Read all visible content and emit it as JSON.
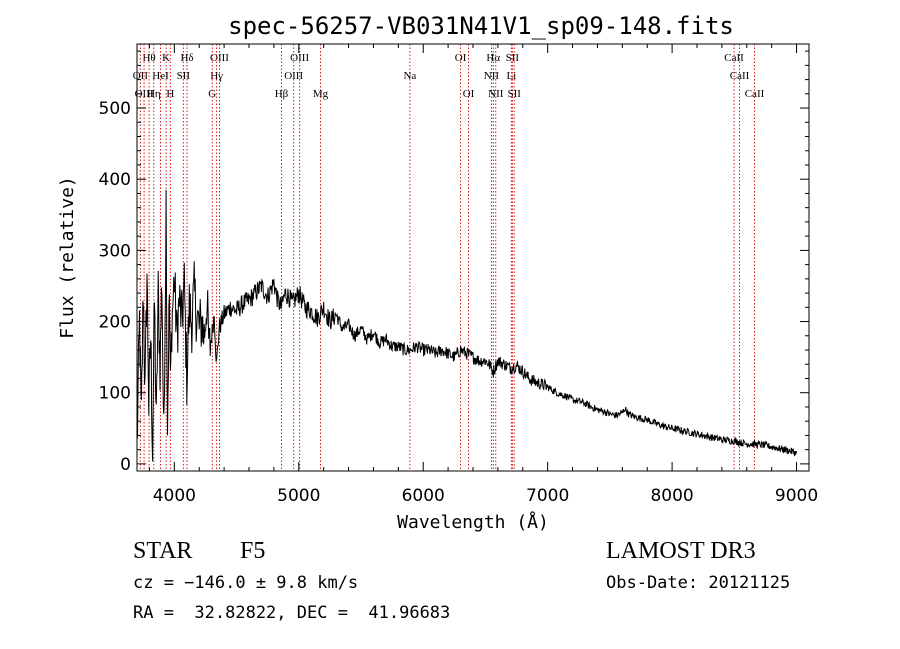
{
  "chart_data": {
    "type": "line",
    "title": "spec-56257-VB031N41V1_sp09-148.fits",
    "xlabel": "Wavelength (Å)",
    "ylabel": "Flux (relative)",
    "xlim": [
      3700,
      9100
    ],
    "ylim": [
      -10,
      590
    ],
    "xticks": [
      4000,
      5000,
      6000,
      7000,
      8000,
      9000
    ],
    "yticks": [
      0,
      100,
      200,
      300,
      400,
      500
    ],
    "xtick_labels": [
      "4000",
      "5000",
      "6000",
      "7000",
      "8000",
      "9000"
    ],
    "ytick_labels": [
      "0",
      "100",
      "200",
      "300",
      "400",
      "500"
    ],
    "spectrum": {
      "x": [
        3700,
        3720,
        3735,
        3750,
        3765,
        3780,
        3795,
        3810,
        3825,
        3840,
        3855,
        3870,
        3885,
        3900,
        3915,
        3925,
        3934,
        3945,
        3960,
        3968,
        3980,
        4000,
        4020,
        4040,
        4060,
        4080,
        4100,
        4120,
        4140,
        4160,
        4180,
        4200,
        4220,
        4240,
        4260,
        4280,
        4300,
        4320,
        4340,
        4360,
        4380,
        4400,
        4450,
        4500,
        4550,
        4600,
        4650,
        4700,
        4750,
        4800,
        4830,
        4861,
        4890,
        4920,
        4950,
        5000,
        5050,
        5100,
        5150,
        5200,
        5250,
        5300,
        5350,
        5400,
        5450,
        5500,
        5550,
        5600,
        5650,
        5700,
        5750,
        5800,
        5850,
        5893,
        5950,
        6000,
        6050,
        6100,
        6150,
        6200,
        6250,
        6300,
        6350,
        6400,
        6450,
        6500,
        6530,
        6563,
        6600,
        6650,
        6700,
        6750,
        6800,
        6850,
        6900,
        6950,
        7000,
        7050,
        7100,
        7150,
        7200,
        7250,
        7300,
        7350,
        7400,
        7450,
        7500,
        7550,
        7600,
        7620,
        7650,
        7700,
        7750,
        7800,
        7850,
        7900,
        7950,
        8000,
        8050,
        8100,
        8150,
        8200,
        8250,
        8300,
        8350,
        8400,
        8450,
        8500,
        8550,
        8600,
        8650,
        8700,
        8750,
        8800,
        8850,
        8900,
        8950,
        9000
      ],
      "y": [
        20,
        200,
        60,
        250,
        100,
        270,
        80,
        180,
        20,
        230,
        50,
        240,
        140,
        260,
        30,
        210,
        370,
        60,
        240,
        100,
        200,
        260,
        180,
        230,
        200,
        250,
        120,
        220,
        200,
        240,
        210,
        190,
        200,
        180,
        230,
        160,
        180,
        210,
        140,
        190,
        200,
        210,
        220,
        215,
        225,
        230,
        240,
        250,
        235,
        255,
        230,
        220,
        240,
        235,
        225,
        240,
        220,
        215,
        205,
        220,
        200,
        210,
        190,
        195,
        180,
        190,
        175,
        185,
        170,
        175,
        165,
        165,
        160,
        160,
        165,
        160,
        160,
        155,
        160,
        155,
        150,
        160,
        155,
        150,
        145,
        145,
        140,
        130,
        145,
        140,
        135,
        138,
        130,
        120,
        115,
        112,
        108,
        102,
        98,
        95,
        90,
        88,
        85,
        80,
        76,
        74,
        70,
        68,
        72,
        78,
        70,
        66,
        64,
        62,
        58,
        55,
        52,
        50,
        48,
        46,
        44,
        42,
        40,
        38,
        36,
        34,
        33,
        32,
        30,
        28,
        28,
        27,
        26,
        24,
        22,
        20,
        18,
        15
      ]
    },
    "lines": [
      {
        "label": "Hθ",
        "wl": 3797,
        "row": 0
      },
      {
        "label": "K",
        "wl": 3934,
        "row": 0
      },
      {
        "label": "Hδ",
        "wl": 4102,
        "row": 0
      },
      {
        "label": "OIII",
        "wl": 4363,
        "row": 0
      },
      {
        "label": "OIII",
        "wl": 5007,
        "row": 0
      },
      {
        "label": "OI",
        "wl": 6300,
        "row": 0
      },
      {
        "label": "Hα",
        "wl": 6563,
        "row": 0
      },
      {
        "label": "SII",
        "wl": 6716,
        "row": 0
      },
      {
        "label": "CaII",
        "wl": 8498,
        "row": 0
      },
      {
        "label": "OII",
        "wl": 3727,
        "row": 1
      },
      {
        "label": "HeI",
        "wl": 3889,
        "row": 1
      },
      {
        "label": "SII",
        "wl": 4072,
        "row": 1
      },
      {
        "label": "Hγ",
        "wl": 4340,
        "row": 1
      },
      {
        "label": "OIII",
        "wl": 4959,
        "row": 1
      },
      {
        "label": "Na",
        "wl": 5893,
        "row": 1
      },
      {
        "label": "NII",
        "wl": 6548,
        "row": 1
      },
      {
        "label": "Li",
        "wl": 6708,
        "row": 1
      },
      {
        "label": "CaII",
        "wl": 8542,
        "row": 1
      },
      {
        "label": "OIII",
        "wl": 3757,
        "row": 2
      },
      {
        "label": "Hη",
        "wl": 3835,
        "row": 2
      },
      {
        "label": "H",
        "wl": 3968,
        "row": 2
      },
      {
        "label": "G",
        "wl": 4305,
        "row": 2
      },
      {
        "label": "Hβ",
        "wl": 4861,
        "row": 2
      },
      {
        "label": "Mg",
        "wl": 5175,
        "row": 2
      },
      {
        "label": "OI",
        "wl": 6364,
        "row": 2
      },
      {
        "label": "NII",
        "wl": 6583,
        "row": 2
      },
      {
        "label": "SII",
        "wl": 6731,
        "row": 2
      },
      {
        "label": "CaII",
        "wl": 8662,
        "row": 2
      }
    ],
    "line_color": "#cc0000",
    "spectrum_color": "#000000"
  },
  "info": {
    "class": "STAR",
    "subclass": "F5",
    "survey": "LAMOST DR3",
    "cz": "cz = −146.0 ± 9.8 km/s",
    "obs_date": "Obs-Date: 20121125",
    "coords": "RA =  32.82822, DEC =  41.96683"
  }
}
